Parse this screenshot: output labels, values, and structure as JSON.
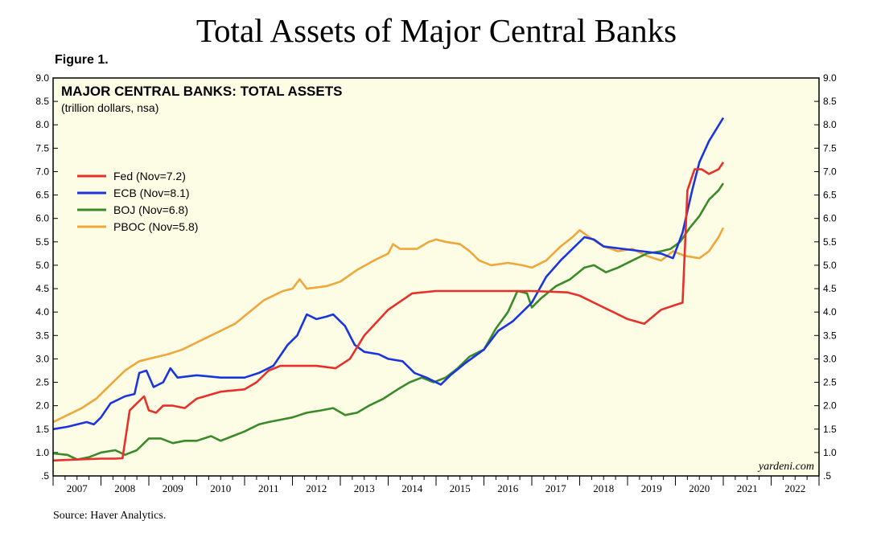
{
  "page": {
    "title": "Total Assets of Major Central Banks",
    "figure_label": "Figure 1.",
    "source": "Source: Haver Analytics."
  },
  "chart_data": {
    "type": "line",
    "title": "MAJOR CENTRAL BANKS: TOTAL ASSETS",
    "subtitle": "(trillion dollars, nsa)",
    "watermark": "yardeni.com",
    "background_color": "#fdfde6",
    "y_tick_labels": [
      ".5",
      "1.0",
      "1.5",
      "2.0",
      "2.5",
      "3.0",
      "3.5",
      "4.0",
      "4.5",
      "5.0",
      "5.5",
      "6.0",
      "6.5",
      "7.0",
      "7.5",
      "8.0",
      "8.5",
      "9.0"
    ],
    "y_ticks": [
      0.5,
      1.0,
      1.5,
      2.0,
      2.5,
      3.0,
      3.5,
      4.0,
      4.5,
      5.0,
      5.5,
      6.0,
      6.5,
      7.0,
      7.5,
      8.0,
      8.5,
      9.0
    ],
    "ylim": [
      0.5,
      9.0
    ],
    "xlim": [
      2007.0,
      2023.0
    ],
    "x_year_labels": [
      "2007",
      "2008",
      "2009",
      "2010",
      "2011",
      "2012",
      "2013",
      "2014",
      "2015",
      "2016",
      "2017",
      "2018",
      "2019",
      "2020",
      "2021",
      "2022"
    ],
    "y_axis_both_sides": true,
    "legend_position": "left",
    "series": [
      {
        "name": "Fed (Nov=7.2)",
        "color": "#e8302a",
        "points": [
          [
            2007.0,
            0.83
          ],
          [
            2007.5,
            0.85
          ],
          [
            2008.0,
            0.87
          ],
          [
            2008.3,
            0.87
          ],
          [
            2008.45,
            0.88
          ],
          [
            2008.6,
            1.9
          ],
          [
            2008.75,
            2.05
          ],
          [
            2008.9,
            2.2
          ],
          [
            2009.0,
            1.9
          ],
          [
            2009.15,
            1.85
          ],
          [
            2009.3,
            2.0
          ],
          [
            2009.5,
            2.0
          ],
          [
            2009.75,
            1.95
          ],
          [
            2010.0,
            2.15
          ],
          [
            2010.5,
            2.3
          ],
          [
            2011.0,
            2.35
          ],
          [
            2011.25,
            2.5
          ],
          [
            2011.5,
            2.75
          ],
          [
            2011.75,
            2.85
          ],
          [
            2012.0,
            2.85
          ],
          [
            2012.5,
            2.85
          ],
          [
            2012.9,
            2.8
          ],
          [
            2013.2,
            3.0
          ],
          [
            2013.5,
            3.5
          ],
          [
            2014.0,
            4.05
          ],
          [
            2014.5,
            4.4
          ],
          [
            2015.0,
            4.45
          ],
          [
            2016.0,
            4.45
          ],
          [
            2017.0,
            4.45
          ],
          [
            2017.75,
            4.42
          ],
          [
            2018.0,
            4.35
          ],
          [
            2018.5,
            4.1
          ],
          [
            2019.0,
            3.85
          ],
          [
            2019.35,
            3.75
          ],
          [
            2019.7,
            4.05
          ],
          [
            2020.0,
            4.15
          ],
          [
            2020.15,
            4.2
          ],
          [
            2020.25,
            6.6
          ],
          [
            2020.4,
            7.05
          ],
          [
            2020.55,
            7.05
          ],
          [
            2020.7,
            6.95
          ],
          [
            2020.9,
            7.05
          ],
          [
            2021.0,
            7.2
          ]
        ]
      },
      {
        "name": "ECB (Nov=8.1)",
        "color": "#1a35e0",
        "points": [
          [
            2007.0,
            1.5
          ],
          [
            2007.3,
            1.55
          ],
          [
            2007.7,
            1.65
          ],
          [
            2007.85,
            1.6
          ],
          [
            2008.0,
            1.75
          ],
          [
            2008.2,
            2.05
          ],
          [
            2008.5,
            2.2
          ],
          [
            2008.7,
            2.25
          ],
          [
            2008.8,
            2.7
          ],
          [
            2008.95,
            2.75
          ],
          [
            2009.1,
            2.4
          ],
          [
            2009.3,
            2.5
          ],
          [
            2009.45,
            2.8
          ],
          [
            2009.6,
            2.6
          ],
          [
            2010.0,
            2.65
          ],
          [
            2010.5,
            2.6
          ],
          [
            2010.8,
            2.6
          ],
          [
            2011.0,
            2.6
          ],
          [
            2011.3,
            2.7
          ],
          [
            2011.6,
            2.85
          ],
          [
            2011.9,
            3.3
          ],
          [
            2012.1,
            3.5
          ],
          [
            2012.3,
            3.95
          ],
          [
            2012.5,
            3.85
          ],
          [
            2012.7,
            3.9
          ],
          [
            2012.85,
            3.95
          ],
          [
            2013.1,
            3.7
          ],
          [
            2013.3,
            3.3
          ],
          [
            2013.5,
            3.15
          ],
          [
            2013.8,
            3.1
          ],
          [
            2014.0,
            3.0
          ],
          [
            2014.3,
            2.95
          ],
          [
            2014.55,
            2.7
          ],
          [
            2014.8,
            2.6
          ],
          [
            2015.1,
            2.45
          ],
          [
            2015.3,
            2.65
          ],
          [
            2015.6,
            2.9
          ],
          [
            2016.0,
            3.2
          ],
          [
            2016.3,
            3.6
          ],
          [
            2016.6,
            3.8
          ],
          [
            2017.0,
            4.2
          ],
          [
            2017.3,
            4.75
          ],
          [
            2017.6,
            5.1
          ],
          [
            2017.9,
            5.4
          ],
          [
            2018.1,
            5.6
          ],
          [
            2018.3,
            5.55
          ],
          [
            2018.5,
            5.4
          ],
          [
            2018.9,
            5.35
          ],
          [
            2019.3,
            5.3
          ],
          [
            2019.7,
            5.25
          ],
          [
            2019.95,
            5.15
          ],
          [
            2020.15,
            5.7
          ],
          [
            2020.35,
            6.6
          ],
          [
            2020.5,
            7.2
          ],
          [
            2020.7,
            7.65
          ],
          [
            2020.85,
            7.9
          ],
          [
            2021.0,
            8.15
          ]
        ]
      },
      {
        "name": "BOJ (Nov=6.8)",
        "color": "#3a8a2a",
        "points": [
          [
            2007.0,
            0.98
          ],
          [
            2007.3,
            0.95
          ],
          [
            2007.5,
            0.85
          ],
          [
            2007.75,
            0.9
          ],
          [
            2008.0,
            1.0
          ],
          [
            2008.3,
            1.05
          ],
          [
            2008.5,
            0.95
          ],
          [
            2008.75,
            1.05
          ],
          [
            2008.9,
            1.2
          ],
          [
            2009.0,
            1.3
          ],
          [
            2009.25,
            1.3
          ],
          [
            2009.5,
            1.2
          ],
          [
            2009.75,
            1.25
          ],
          [
            2010.0,
            1.25
          ],
          [
            2010.3,
            1.35
          ],
          [
            2010.5,
            1.25
          ],
          [
            2010.75,
            1.35
          ],
          [
            2011.0,
            1.45
          ],
          [
            2011.3,
            1.6
          ],
          [
            2011.5,
            1.65
          ],
          [
            2011.75,
            1.7
          ],
          [
            2012.0,
            1.75
          ],
          [
            2012.3,
            1.85
          ],
          [
            2012.6,
            1.9
          ],
          [
            2012.85,
            1.95
          ],
          [
            2013.1,
            1.8
          ],
          [
            2013.35,
            1.85
          ],
          [
            2013.6,
            2.0
          ],
          [
            2013.9,
            2.15
          ],
          [
            2014.2,
            2.35
          ],
          [
            2014.45,
            2.5
          ],
          [
            2014.7,
            2.6
          ],
          [
            2014.95,
            2.5
          ],
          [
            2015.2,
            2.6
          ],
          [
            2015.45,
            2.8
          ],
          [
            2015.7,
            3.05
          ],
          [
            2016.0,
            3.2
          ],
          [
            2016.25,
            3.65
          ],
          [
            2016.5,
            4.0
          ],
          [
            2016.7,
            4.45
          ],
          [
            2016.9,
            4.4
          ],
          [
            2017.0,
            4.1
          ],
          [
            2017.2,
            4.3
          ],
          [
            2017.5,
            4.55
          ],
          [
            2017.8,
            4.7
          ],
          [
            2018.1,
            4.95
          ],
          [
            2018.3,
            5.0
          ],
          [
            2018.55,
            4.85
          ],
          [
            2018.8,
            4.95
          ],
          [
            2019.1,
            5.1
          ],
          [
            2019.4,
            5.25
          ],
          [
            2019.7,
            5.3
          ],
          [
            2019.9,
            5.35
          ],
          [
            2020.1,
            5.5
          ],
          [
            2020.3,
            5.8
          ],
          [
            2020.5,
            6.05
          ],
          [
            2020.7,
            6.4
          ],
          [
            2020.9,
            6.6
          ],
          [
            2021.0,
            6.75
          ]
        ]
      },
      {
        "name": "PBOC (Nov=5.8)",
        "color": "#f0a63a",
        "points": [
          [
            2007.0,
            1.65
          ],
          [
            2007.3,
            1.8
          ],
          [
            2007.6,
            1.95
          ],
          [
            2007.9,
            2.15
          ],
          [
            2008.2,
            2.45
          ],
          [
            2008.5,
            2.75
          ],
          [
            2008.8,
            2.95
          ],
          [
            2009.0,
            3.0
          ],
          [
            2009.4,
            3.1
          ],
          [
            2009.7,
            3.2
          ],
          [
            2010.0,
            3.35
          ],
          [
            2010.4,
            3.55
          ],
          [
            2010.8,
            3.75
          ],
          [
            2011.1,
            4.0
          ],
          [
            2011.4,
            4.25
          ],
          [
            2011.8,
            4.45
          ],
          [
            2012.0,
            4.5
          ],
          [
            2012.15,
            4.7
          ],
          [
            2012.3,
            4.5
          ],
          [
            2012.7,
            4.55
          ],
          [
            2013.0,
            4.65
          ],
          [
            2013.35,
            4.9
          ],
          [
            2013.7,
            5.1
          ],
          [
            2014.0,
            5.25
          ],
          [
            2014.1,
            5.45
          ],
          [
            2014.25,
            5.35
          ],
          [
            2014.6,
            5.35
          ],
          [
            2014.85,
            5.5
          ],
          [
            2015.0,
            5.55
          ],
          [
            2015.2,
            5.5
          ],
          [
            2015.5,
            5.45
          ],
          [
            2015.7,
            5.3
          ],
          [
            2015.9,
            5.1
          ],
          [
            2016.15,
            5.0
          ],
          [
            2016.5,
            5.05
          ],
          [
            2016.8,
            5.0
          ],
          [
            2017.0,
            4.95
          ],
          [
            2017.3,
            5.1
          ],
          [
            2017.6,
            5.4
          ],
          [
            2017.85,
            5.6
          ],
          [
            2018.0,
            5.75
          ],
          [
            2018.2,
            5.6
          ],
          [
            2018.5,
            5.4
          ],
          [
            2018.8,
            5.3
          ],
          [
            2019.1,
            5.35
          ],
          [
            2019.4,
            5.2
          ],
          [
            2019.7,
            5.1
          ],
          [
            2019.95,
            5.3
          ],
          [
            2020.2,
            5.2
          ],
          [
            2020.5,
            5.15
          ],
          [
            2020.7,
            5.3
          ],
          [
            2020.9,
            5.6
          ],
          [
            2021.0,
            5.8
          ]
        ]
      }
    ]
  }
}
